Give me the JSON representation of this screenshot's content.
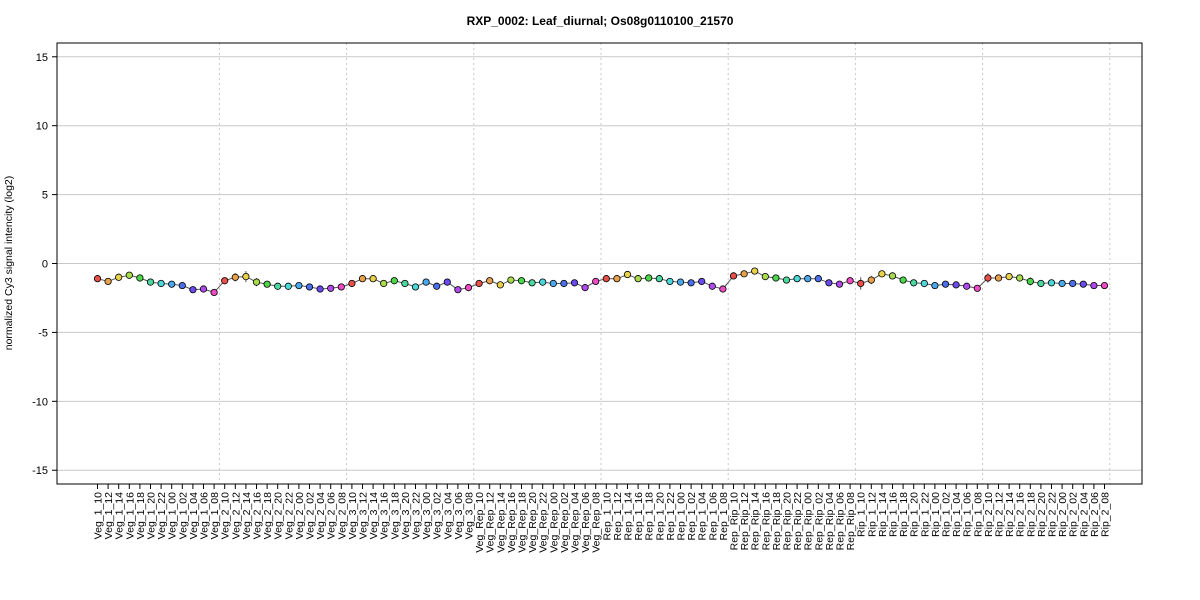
{
  "chart_data": {
    "type": "line",
    "title": "RXP_0002: Leaf_diurnal; Os08g0110100_21570",
    "ylabel": "normalized Cy3 signal intencity (log2)",
    "xlabel": "",
    "ylim": [
      -16,
      16
    ],
    "yticks": [
      -15,
      -10,
      -5,
      0,
      5,
      10,
      15
    ],
    "grid": true,
    "line_color": "#555555",
    "errorbar_color": "#555555",
    "group_separator_after_index": [
      11,
      23,
      35,
      47,
      59,
      71,
      83,
      95
    ],
    "palette": [
      "#e6504a",
      "#e9a04a",
      "#e9d24a",
      "#a8dc4a",
      "#4ad84a",
      "#4ad8a0",
      "#4ad8d8",
      "#4aa8ee",
      "#4a70ee",
      "#6a4aee",
      "#b04aee",
      "#ee4ac4"
    ],
    "categories": [
      "Veg_1_10",
      "Veg_1_12",
      "Veg_1_14",
      "Veg_1_16",
      "Veg_1_18",
      "Veg_1_20",
      "Veg_1_22",
      "Veg_1_00",
      "Veg_1_02",
      "Veg_1_04",
      "Veg_1_06",
      "Veg_1_08",
      "Veg_2_10",
      "Veg_2_12",
      "Veg_2_14",
      "Veg_2_16",
      "Veg_2_18",
      "Veg_2_20",
      "Veg_2_22",
      "Veg_2_00",
      "Veg_2_02",
      "Veg_2_04",
      "Veg_2_06",
      "Veg_2_08",
      "Veg_3_10",
      "Veg_3_12",
      "Veg_3_14",
      "Veg_3_16",
      "Veg_3_18",
      "Veg_3_20",
      "Veg_3_22",
      "Veg_3_00",
      "Veg_3_02",
      "Veg_3_04",
      "Veg_3_06",
      "Veg_3_08",
      "Veg_Rep_10",
      "Veg_Rep_12",
      "Veg_Rep_14",
      "Veg_Rep_16",
      "Veg_Rep_18",
      "Veg_Rep_20",
      "Veg_Rep_22",
      "Veg_Rep_00",
      "Veg_Rep_02",
      "Veg_Rep_04",
      "Veg_Rep_06",
      "Veg_Rep_08",
      "Rep_1_10",
      "Rep_1_12",
      "Rep_1_14",
      "Rep_1_16",
      "Rep_1_18",
      "Rep_1_20",
      "Rep_1_22",
      "Rep_1_00",
      "Rep_1_02",
      "Rep_1_04",
      "Rep_1_06",
      "Rep_1_08",
      "Rep_Rip_10",
      "Rep_Rip_12",
      "Rep_Rip_14",
      "Rep_Rip_16",
      "Rep_Rip_18",
      "Rep_Rip_20",
      "Rep_Rip_22",
      "Rep_Rip_00",
      "Rep_Rip_02",
      "Rep_Rip_04",
      "Rep_Rip_06",
      "Rep_Rip_08",
      "Rip_1_10",
      "Rip_1_12",
      "Rip_1_14",
      "Rip_1_16",
      "Rip_1_18",
      "Rip_1_20",
      "Rip_1_22",
      "Rip_1_00",
      "Rip_1_02",
      "Rip_1_04",
      "Rip_1_06",
      "Rip_1_08",
      "Rip_2_10",
      "Rip_2_12",
      "Rip_2_14",
      "Rip_2_16",
      "Rip_2_18",
      "Rip_2_20",
      "Rip_2_22",
      "Rip_2_00",
      "Rip_2_02",
      "Rip_2_04",
      "Rip_2_06",
      "Rip_2_08"
    ],
    "series": [
      {
        "values": [
          -1.1,
          -1.3,
          -1.0,
          -0.85,
          -1.05,
          -1.35,
          -1.45,
          -1.5,
          -1.6,
          -1.9,
          -1.85,
          -2.1,
          -1.25,
          -1.0,
          -0.95,
          -1.35,
          -1.5,
          -1.65,
          -1.65,
          -1.6,
          -1.7,
          -1.85,
          -1.8,
          -1.7,
          -1.45,
          -1.1,
          -1.1,
          -1.45,
          -1.25,
          -1.45,
          -1.7,
          -1.35,
          -1.65,
          -1.35,
          -1.9,
          -1.75,
          -1.45,
          -1.25,
          -1.55,
          -1.2,
          -1.25,
          -1.4,
          -1.35,
          -1.45,
          -1.45,
          -1.4,
          -1.75,
          -1.3,
          -1.1,
          -1.1,
          -0.8,
          -1.1,
          -1.05,
          -1.1,
          -1.3,
          -1.35,
          -1.4,
          -1.3,
          -1.65,
          -1.85,
          -0.9,
          -0.75,
          -0.55,
          -0.95,
          -1.05,
          -1.2,
          -1.1,
          -1.1,
          -1.1,
          -1.4,
          -1.5,
          -1.25,
          -1.45,
          -1.2,
          -0.75,
          -0.9,
          -1.2,
          -1.4,
          -1.45,
          -1.6,
          -1.5,
          -1.55,
          -1.65,
          -1.8,
          -1.05,
          -1.05,
          -0.95,
          -1.05,
          -1.3,
          -1.45,
          -1.4,
          -1.45,
          -1.45,
          -1.5,
          -1.6,
          -1.6
        ],
        "errors": [
          0.2,
          0.1,
          0.1,
          0.1,
          0.1,
          0.1,
          0.05,
          0.05,
          0.05,
          0.05,
          0.05,
          0.1,
          0.2,
          0.3,
          0.4,
          0.3,
          0.15,
          0.05,
          0.05,
          0.05,
          0.05,
          0.05,
          0.05,
          0.05,
          0.1,
          0.1,
          0.1,
          0.25,
          0.15,
          0.1,
          0.1,
          0.1,
          0.1,
          0.1,
          0.1,
          0.05,
          0.1,
          0.1,
          0.15,
          0.1,
          0.1,
          0.05,
          0.05,
          0.05,
          0.05,
          0.05,
          0.05,
          0.05,
          0.1,
          0.1,
          0.25,
          0.1,
          0.1,
          0.05,
          0.05,
          0.05,
          0.05,
          0.05,
          0.1,
          0.2,
          0.2,
          0.2,
          0.15,
          0.1,
          0.05,
          0.05,
          0.05,
          0.05,
          0.05,
          0.05,
          0.05,
          0.05,
          0.45,
          0.3,
          0.15,
          0.1,
          0.05,
          0.05,
          0.05,
          0.05,
          0.05,
          0.05,
          0.05,
          0.05,
          0.35,
          0.1,
          0.05,
          0.25,
          0.3,
          0.15,
          0.2,
          0.05,
          0.05,
          0.05,
          0.05,
          0.05
        ]
      }
    ]
  }
}
